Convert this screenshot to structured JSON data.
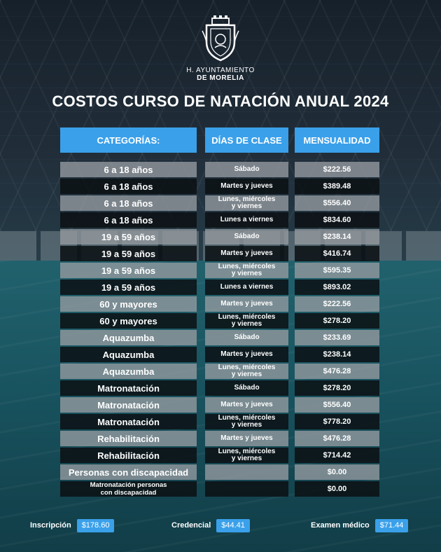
{
  "header": {
    "org_line1": "H. AYUNTAMIENTO",
    "org_line2": "DE MORELIA",
    "title": "COSTOS CURSO DE NATACIÓN ANUAL 2024"
  },
  "table": {
    "columns": [
      "CATEGORÍAS:",
      "DÍAS DE CLASE",
      "MENSUALIDAD"
    ],
    "rows": [
      [
        "6 a 18 años",
        "Sábado",
        "$222.56"
      ],
      [
        "6 a 18 años",
        "Martes y jueves",
        "$389.48"
      ],
      [
        "6 a 18 años",
        "Lunes, miércoles\ny viernes",
        "$556.40"
      ],
      [
        "6 a 18 años",
        "Lunes a viernes",
        "$834.60"
      ],
      [
        "19 a 59 años",
        "Sábado",
        "$238.14"
      ],
      [
        "19 a 59 años",
        "Martes y jueves",
        "$416.74"
      ],
      [
        "19 a 59 años",
        "Lunes, miércoles\ny viernes",
        "$595.35"
      ],
      [
        "19 a 59 años",
        "Lunes a viernes",
        "$893.02"
      ],
      [
        "60 y  mayores",
        "Martes y jueves",
        "$222.56"
      ],
      [
        "60 y  mayores",
        "Lunes, miércoles\ny viernes",
        "$278.20"
      ],
      [
        "Aquazumba",
        "Sábado",
        "$233.69"
      ],
      [
        "Aquazumba",
        "Martes y jueves",
        "$238.14"
      ],
      [
        "Aquazumba",
        "Lunes, miércoles\ny viernes",
        "$476.28"
      ],
      [
        "Matronatación",
        "Sábado",
        "$278.20"
      ],
      [
        "Matronatación",
        "Martes y jueves",
        "$556.40"
      ],
      [
        "Matronatación",
        "Lunes, miércoles\ny viernes",
        "$778.20"
      ],
      [
        "Rehabilitación",
        "Martes y jueves",
        "$476.28"
      ],
      [
        "Rehabilitación",
        "Lunes, miércoles\ny viernes",
        "$714.42"
      ],
      [
        "Personas con discapacidad",
        "",
        "$0.00"
      ],
      [
        "Matronatación personas\ncon discapacidad",
        "",
        "$0.00"
      ]
    ]
  },
  "fees": {
    "inscripcion_label": "Inscripción",
    "inscripcion_value": "$178.60",
    "credencial_label": "Credencial",
    "credencial_value": "$44.41",
    "examen_label": "Examen médico",
    "examen_value": "$71.44"
  },
  "colors": {
    "accent": "#3aa0ea",
    "row_light": "#9a9fa4",
    "row_dark": "#0c1014"
  }
}
